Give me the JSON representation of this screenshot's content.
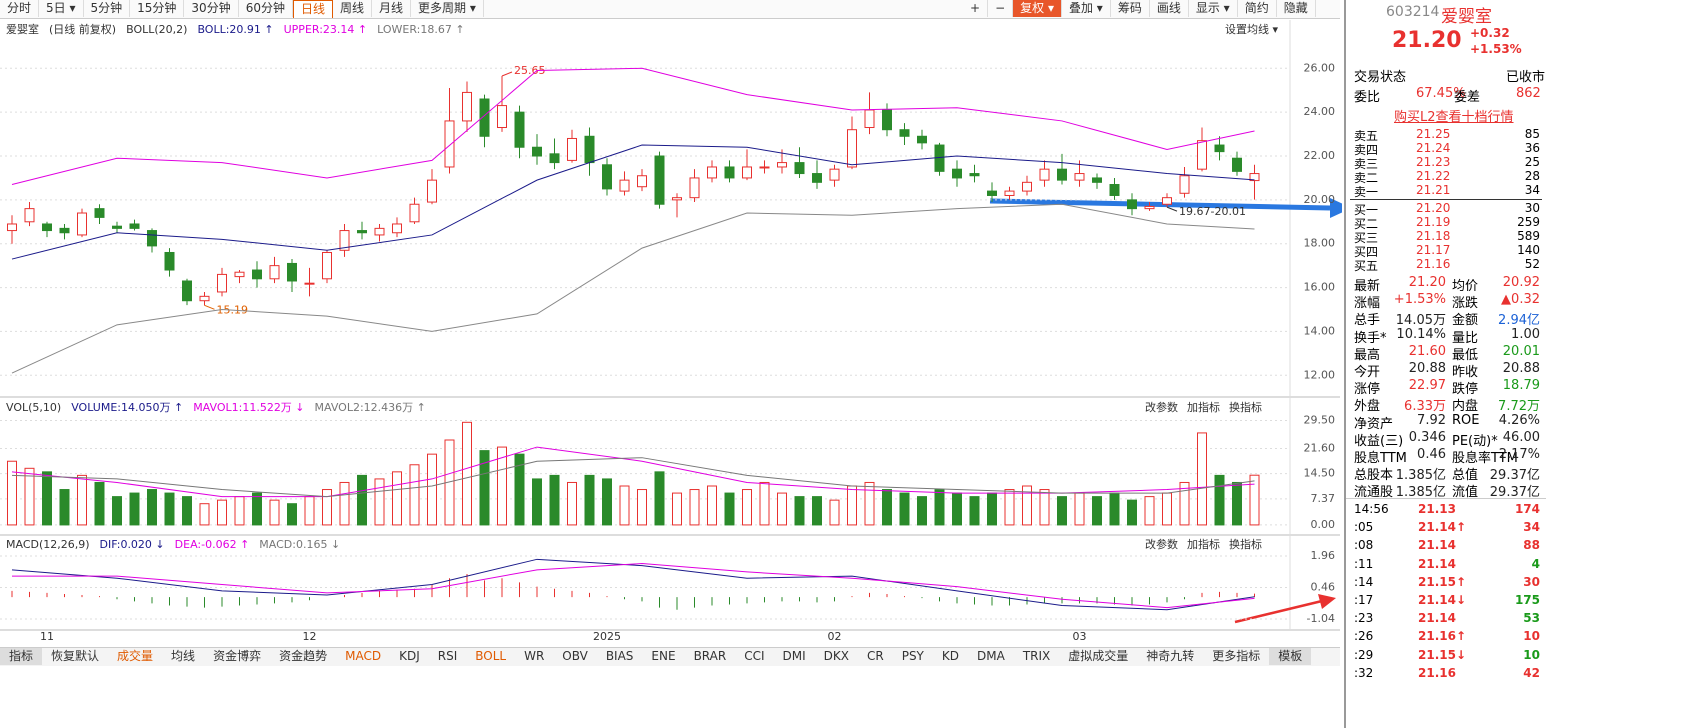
{
  "toolbar": {
    "periods": [
      "分时",
      "5日 ▾",
      "5分钟",
      "15分钟",
      "30分钟",
      "60分钟",
      "日线",
      "周线",
      "月线",
      "更多周期 ▾"
    ],
    "active": 6,
    "tools": [
      "+",
      "−",
      "复权 ▾",
      "叠加 ▾",
      "筹码",
      "画线",
      "显示 ▾",
      "简约",
      "隐藏"
    ],
    "tool_active": 2
  },
  "chart_data": [
    {
      "type": "candlestick",
      "header": [
        {
          "text": "爱婴室"
        },
        {
          "text": "(日线 前复权)"
        },
        {
          "text": "BOLL(20,2)"
        },
        {
          "text": "BOLL:20.91 ↑",
          "color": "#1b1b8a"
        },
        {
          "text": "UPPER:23.14 ↑",
          "color": "#e000e0"
        },
        {
          "text": "LOWER:18.67 ↑",
          "color": "#777777"
        }
      ],
      "setting": "设置均线 ▾",
      "up_color": "#e8312f",
      "down_color": "#2a8a2a",
      "candles": [
        [
          18.6,
          18.9,
          19.3,
          18.0
        ],
        [
          19.0,
          19.6,
          19.9,
          18.8
        ],
        [
          18.9,
          18.6,
          19.0,
          18.3
        ],
        [
          18.7,
          18.5,
          18.9,
          18.2
        ],
        [
          18.4,
          19.4,
          19.6,
          18.3
        ],
        [
          19.6,
          19.2,
          19.8,
          18.9
        ],
        [
          18.8,
          18.7,
          19.0,
          18.5
        ],
        [
          18.9,
          18.7,
          19.1,
          18.6
        ],
        [
          18.6,
          17.9,
          18.7,
          17.6
        ],
        [
          17.6,
          16.8,
          17.8,
          16.5
        ],
        [
          16.3,
          15.4,
          16.4,
          15.2
        ],
        [
          15.4,
          15.6,
          15.8,
          15.19
        ],
        [
          15.8,
          16.6,
          16.9,
          15.6
        ],
        [
          16.5,
          16.7,
          16.8,
          16.2
        ],
        [
          16.8,
          16.4,
          17.2,
          16.0
        ],
        [
          16.4,
          17.0,
          17.4,
          16.2
        ],
        [
          17.1,
          16.3,
          17.3,
          15.8
        ],
        [
          16.2,
          16.2,
          16.9,
          15.6
        ],
        [
          16.4,
          17.6,
          17.7,
          16.2
        ],
        [
          17.7,
          18.6,
          18.9,
          17.4
        ],
        [
          18.6,
          18.5,
          19.0,
          18.2
        ],
        [
          18.4,
          18.7,
          18.9,
          18.1
        ],
        [
          18.5,
          18.9,
          19.2,
          18.3
        ],
        [
          19.0,
          19.8,
          20.1,
          18.9
        ],
        [
          19.9,
          20.9,
          21.4,
          19.8
        ],
        [
          21.5,
          23.6,
          25.1,
          21.2
        ],
        [
          23.6,
          24.9,
          25.4,
          23.1
        ],
        [
          24.6,
          22.9,
          24.8,
          22.4
        ],
        [
          23.3,
          24.3,
          25.65,
          23.1
        ],
        [
          24.0,
          22.4,
          24.3,
          21.9
        ],
        [
          22.4,
          22.0,
          23.0,
          21.6
        ],
        [
          22.1,
          21.7,
          22.8,
          21.4
        ],
        [
          21.8,
          22.8,
          23.2,
          21.7
        ],
        [
          22.9,
          21.7,
          23.3,
          21.1
        ],
        [
          21.6,
          20.5,
          21.9,
          20.2
        ],
        [
          20.4,
          20.9,
          21.3,
          20.2
        ],
        [
          20.6,
          21.1,
          21.4,
          20.4
        ],
        [
          22.0,
          19.8,
          22.2,
          19.6
        ],
        [
          20.0,
          20.1,
          20.3,
          19.2
        ],
        [
          20.1,
          21.0,
          21.4,
          19.9
        ],
        [
          21.0,
          21.5,
          21.8,
          20.8
        ],
        [
          21.5,
          21.0,
          21.8,
          20.8
        ],
        [
          21.0,
          21.5,
          22.3,
          20.9
        ],
        [
          21.5,
          21.5,
          21.8,
          21.2
        ],
        [
          21.5,
          21.7,
          22.3,
          21.2
        ],
        [
          21.7,
          21.2,
          22.4,
          21.0
        ],
        [
          21.2,
          20.8,
          21.8,
          20.5
        ],
        [
          20.9,
          21.4,
          21.6,
          20.6
        ],
        [
          21.5,
          23.2,
          23.8,
          21.4
        ],
        [
          23.3,
          24.1,
          24.9,
          23.0
        ],
        [
          24.1,
          23.2,
          24.4,
          22.9
        ],
        [
          23.2,
          22.9,
          23.5,
          22.5
        ],
        [
          22.9,
          22.6,
          23.2,
          22.3
        ],
        [
          22.5,
          21.3,
          22.6,
          21.1
        ],
        [
          21.4,
          21.0,
          21.8,
          20.6
        ],
        [
          21.2,
          21.1,
          21.6,
          20.8
        ],
        [
          20.4,
          20.2,
          20.8,
          19.9
        ],
        [
          20.2,
          20.4,
          20.6,
          20.0
        ],
        [
          20.4,
          20.8,
          21.1,
          20.2
        ],
        [
          20.9,
          21.4,
          21.8,
          20.6
        ],
        [
          21.4,
          20.9,
          22.1,
          20.7
        ],
        [
          20.9,
          21.2,
          21.8,
          20.6
        ],
        [
          21.0,
          20.8,
          21.2,
          20.5
        ],
        [
          20.7,
          20.2,
          21.0,
          20.0
        ],
        [
          20.0,
          19.6,
          20.3,
          19.3
        ],
        [
          19.6,
          19.7,
          19.9,
          19.5
        ],
        [
          19.8,
          20.1,
          20.3,
          19.67
        ],
        [
          20.3,
          21.1,
          21.5,
          20.1
        ],
        [
          21.4,
          22.7,
          23.3,
          21.3
        ],
        [
          22.5,
          22.2,
          22.9,
          21.8
        ],
        [
          21.9,
          21.3,
          22.2,
          21.1
        ],
        [
          20.88,
          21.2,
          21.6,
          20.01
        ]
      ],
      "lines": {
        "x": [
          0,
          6,
          12,
          18,
          24,
          30,
          36,
          42,
          48,
          54,
          60,
          66,
          71
        ],
        "series": [
          {
            "color": "#e000e0",
            "values": [
              20.7,
              21.9,
              21.7,
              21.0,
              21.8,
              25.9,
              26.0,
              24.8,
              24.1,
              24.2,
              23.6,
              22.3,
              23.14
            ]
          },
          {
            "color": "#1b1b8a",
            "values": [
              17.3,
              18.5,
              18.2,
              17.7,
              18.4,
              20.9,
              22.5,
              22.4,
              21.6,
              22.0,
              21.7,
              21.2,
              20.91
            ]
          },
          {
            "color": "#888888",
            "values": [
              12.1,
              14.3,
              15.0,
              14.7,
              14.0,
              14.8,
              17.8,
              19.4,
              19.3,
              19.6,
              19.8,
              18.9,
              18.67
            ]
          }
        ]
      },
      "annotations": [
        {
          "value": 25.65,
          "label": "25.65",
          "color": "#e8312f"
        },
        {
          "value": 15.19,
          "label": "15.19",
          "color": "#e06000"
        },
        {
          "value": 19.67,
          "label": "19.67-20.01",
          "color": "#333333"
        }
      ],
      "ylim": [
        11.1,
        27.2
      ],
      "yticks": [
        {
          "value": 12,
          "label": "12.00"
        },
        {
          "value": 14,
          "label": "14.00"
        },
        {
          "value": 16,
          "label": "16.00"
        },
        {
          "value": 18,
          "label": "18.00"
        },
        {
          "value": 20,
          "label": "20.00"
        },
        {
          "value": 22,
          "label": "22.00"
        },
        {
          "value": 24,
          "label": "24.00"
        },
        {
          "value": 26,
          "label": "26.00"
        }
      ],
      "grid": true
    },
    {
      "type": "volume",
      "header": [
        {
          "text": "VOL(5,10)"
        },
        {
          "text": "VOLUME:14.050万 ↑",
          "color": "#1b1b8a"
        },
        {
          "text": "MAVOL1:11.522万 ↓",
          "color": "#e000e0"
        },
        {
          "text": "MAVOL2:12.436万 ↑",
          "color": "#777777"
        }
      ],
      "buttons": [
        "改参数",
        "加指标",
        "换指标"
      ],
      "up_color": "#e8312f",
      "down_color": "#2a8a2a",
      "values": [
        18,
        16,
        15,
        10,
        14,
        12,
        8,
        9,
        10,
        9,
        8,
        6,
        7,
        8,
        9,
        7,
        6,
        8,
        10,
        12,
        14,
        13,
        15,
        17,
        20,
        24,
        29,
        21,
        22,
        20,
        13,
        14,
        12,
        14,
        13,
        11,
        10,
        15,
        9,
        10,
        11,
        9,
        10,
        12,
        9,
        8,
        8,
        7,
        11,
        12,
        10,
        9,
        8,
        10,
        9,
        8,
        9,
        10,
        11,
        10,
        8,
        9,
        8,
        9,
        7,
        8,
        9,
        12,
        26,
        14,
        12,
        14.05
      ],
      "lines": {
        "x": [
          0,
          6,
          12,
          18,
          24,
          30,
          36,
          42,
          48,
          54,
          60,
          66,
          71
        ],
        "series": [
          {
            "color": "#e000e0",
            "values": [
              15,
              12,
              8,
              8,
              13,
              22,
              18,
              12,
              10,
              9,
              9,
              10,
              11.522
            ]
          },
          {
            "color": "#777777",
            "values": [
              14,
              13,
              10,
              8,
              11,
              18,
              19,
              14,
              11,
              10,
              9,
              9,
              12.436
            ]
          }
        ]
      },
      "ylim": [
        -2,
        30.5
      ],
      "yticks": [
        {
          "value": 0,
          "label": "0.00"
        },
        7.37,
        {
          "value": 14.5,
          "label": "14.50"
        },
        {
          "value": 21.6,
          "label": "21.60"
        },
        {
          "value": 29.5,
          "label": "29.50"
        }
      ],
      "grid": true
    },
    {
      "type": "macd",
      "header": [
        {
          "text": "MACD(12,26,9)"
        },
        {
          "text": "DIF:0.020 ↓",
          "color": "#1b1b8a"
        },
        {
          "text": "DEA:-0.062 ↑",
          "color": "#e000e0"
        },
        {
          "text": "MACD:0.165 ↓",
          "color": "#777777"
        }
      ],
      "buttons": [
        "改参数",
        "加指标",
        "换指标"
      ],
      "up_color": "#e8312f",
      "down_color": "#2a8a2a",
      "values": [
        0.3,
        0.25,
        0.2,
        0.15,
        0.1,
        0.05,
        -0.1,
        -0.2,
        -0.3,
        -0.4,
        -0.45,
        -0.5,
        -0.45,
        -0.4,
        -0.35,
        -0.3,
        -0.25,
        -0.15,
        0.0,
        0.1,
        0.2,
        0.3,
        0.35,
        0.4,
        0.6,
        0.9,
        1.1,
        0.8,
        0.9,
        0.7,
        0.5,
        0.4,
        0.3,
        0.2,
        0.05,
        -0.1,
        -0.2,
        -0.5,
        -0.6,
        -0.5,
        -0.4,
        -0.35,
        -0.3,
        -0.25,
        -0.2,
        -0.2,
        -0.25,
        -0.2,
        0.05,
        0.2,
        0.15,
        0.05,
        -0.05,
        -0.2,
        -0.3,
        -0.35,
        -0.4,
        -0.4,
        -0.35,
        -0.3,
        -0.3,
        -0.3,
        -0.3,
        -0.35,
        -0.4,
        -0.35,
        -0.25,
        -0.1,
        0.2,
        0.25,
        0.2,
        0.165
      ],
      "lines": {
        "x": [
          0,
          6,
          12,
          18,
          24,
          30,
          36,
          42,
          48,
          54,
          60,
          66,
          71
        ],
        "series": [
          {
            "color": "#1b1b8a",
            "values": [
              1.3,
              0.9,
              0.3,
              0.1,
              0.6,
              1.8,
              1.5,
              0.9,
              1.0,
              0.3,
              -0.4,
              -0.6,
              0.02
            ]
          },
          {
            "color": "#e000e0",
            "values": [
              1.0,
              1.0,
              0.6,
              0.2,
              0.4,
              1.3,
              1.6,
              1.2,
              0.9,
              0.5,
              -0.1,
              -0.5,
              -0.062
            ]
          }
        ]
      },
      "categories": [
        null,
        null,
        "11",
        null,
        null,
        null,
        null,
        null,
        null,
        null,
        null,
        null,
        null,
        null,
        null,
        null,
        null,
        "12",
        null,
        null,
        null,
        null,
        null,
        null,
        null,
        null,
        null,
        null,
        null,
        null,
        null,
        null,
        null,
        null,
        "2025",
        null,
        null,
        null,
        null,
        null,
        null,
        null,
        null,
        null,
        null,
        null,
        null,
        "02",
        null,
        null,
        null,
        null,
        null,
        null,
        null,
        null,
        null,
        null,
        null,
        null,
        null,
        "03",
        null,
        null,
        null,
        null,
        null,
        null,
        null,
        null,
        null,
        null
      ],
      "ylim": [
        -1.47,
        2.72
      ],
      "yticks": [
        1.96,
        0.46,
        -1.04
      ],
      "grid": true
    }
  ],
  "indicator_tabs": {
    "items": [
      "指标",
      "恢复默认",
      "成交量",
      "均线",
      "资金博弈",
      "资金趋势",
      "MACD",
      "KDJ",
      "RSI",
      "BOLL",
      "WR",
      "OBV",
      "BIAS",
      "ENE",
      "BRAR",
      "CCI",
      "DMI",
      "DKX",
      "CR",
      "PSY",
      "KD",
      "DMA",
      "TRIX",
      "虚拟成交量",
      "神奇九转",
      "更多指标",
      "模板"
    ],
    "highlighted": [
      2,
      6,
      9
    ],
    "boxed": [
      0,
      26
    ]
  },
  "quote": {
    "code": "603214",
    "name": "爱婴室",
    "price": "21.20",
    "change": "+0.32",
    "pct": "+1.53%",
    "status_label": "交易状态",
    "status": "已收市",
    "wb_label": "委比",
    "wb": "67.45%",
    "wc_label": "委差",
    "wc": "862",
    "l2_link": "购买L2查看十档行情",
    "sells": [
      [
        "卖五",
        "21.25",
        "85"
      ],
      [
        "卖四",
        "21.24",
        "36"
      ],
      [
        "卖三",
        "21.23",
        "25"
      ],
      [
        "卖二",
        "21.22",
        "28"
      ],
      [
        "卖一",
        "21.21",
        "34"
      ]
    ],
    "buys": [
      [
        "买一",
        "21.20",
        "30"
      ],
      [
        "买二",
        "21.19",
        "259"
      ],
      [
        "买三",
        "21.18",
        "589"
      ],
      [
        "买四",
        "21.17",
        "140"
      ],
      [
        "买五",
        "21.16",
        "52"
      ]
    ],
    "stats": [
      [
        "最新",
        "21.20",
        "均价",
        "20.92"
      ],
      [
        "涨幅",
        "+1.53%",
        "涨跌",
        "▲0.32"
      ],
      [
        "总手",
        "14.05万",
        "金额",
        "2.94亿"
      ],
      [
        "换手*",
        "10.14%",
        "量比",
        "1.00"
      ],
      [
        "最高",
        "21.60",
        "最低",
        "20.01"
      ],
      [
        "今开",
        "20.88",
        "昨收",
        "20.88"
      ],
      [
        "涨停",
        "22.97",
        "跌停",
        "18.79"
      ],
      [
        "外盘",
        "6.33万",
        "内盘",
        "7.72万"
      ],
      [
        "净资产",
        "7.92",
        "ROE",
        "4.26%"
      ],
      [
        "收益(三)",
        "0.346",
        "PE(动)*",
        "46.00"
      ],
      [
        "股息TTM",
        "0.46",
        "股息率TTM",
        "2.17%"
      ],
      [
        "总股本",
        "1.385亿",
        "总值",
        "29.37亿"
      ],
      [
        "流通股",
        "1.385亿",
        "流值",
        "29.37亿"
      ]
    ],
    "stat_colors": [
      [
        "#e8312f",
        "#e8312f"
      ],
      [
        "#e8312f",
        "#e8312f"
      ],
      [
        "#222222",
        "#1c62d6"
      ],
      [
        "#222222",
        "#222222"
      ],
      [
        "#e8312f",
        "#1a9a1a"
      ],
      [
        "#222222",
        "#222222"
      ],
      [
        "#e8312f",
        "#1a9a1a"
      ],
      [
        "#e8312f",
        "#1a9a1a"
      ],
      [
        "#222222",
        "#222222"
      ],
      [
        "#222222",
        "#222222"
      ],
      [
        "#222222",
        "#222222"
      ],
      [
        "#222222",
        "#222222"
      ],
      [
        "#222222",
        "#222222"
      ]
    ],
    "ticks": [
      [
        "14:56",
        "21.13",
        "174"
      ],
      [
        ":05",
        "21.14↑",
        "34"
      ],
      [
        ":08",
        "21.14",
        "88"
      ],
      [
        ":11",
        "21.14",
        "4"
      ],
      [
        ":14",
        "21.15↑",
        "30"
      ],
      [
        ":17",
        "21.14↓",
        "175"
      ],
      [
        ":23",
        "21.14",
        "53"
      ],
      [
        ":26",
        "21.16↑",
        "10"
      ],
      [
        ":29",
        "21.15↓",
        "10"
      ],
      [
        ":32",
        "21.16",
        "42"
      ]
    ],
    "tick_vol_colors": [
      "#e8312f",
      "#e8312f",
      "#e8312f",
      "#1a9a1a",
      "#e8312f",
      "#1a9a1a",
      "#1a9a1a",
      "#e8312f",
      "#1a9a1a",
      "#e8312f"
    ]
  }
}
